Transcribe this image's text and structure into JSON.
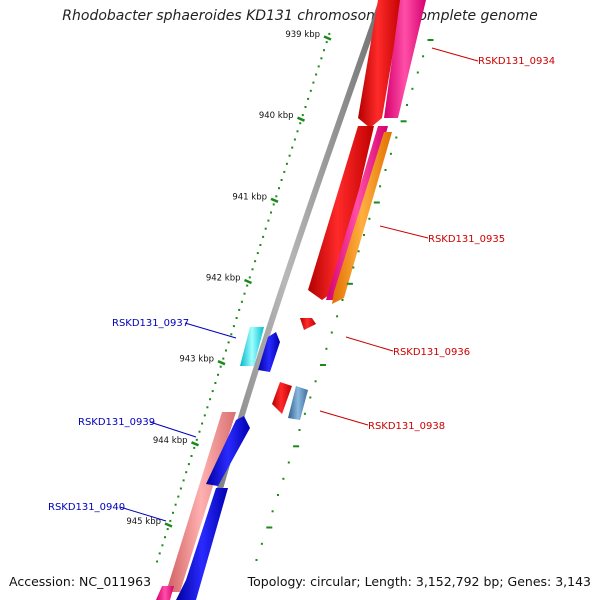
{
  "title": "Rhodobacter sphaeroides KD131 chromosome 1, complete genome",
  "accession_text": "Accession: NC_011963",
  "topology_text": "Topology: circular; Length: 3,152,792 bp; Genes: 3,143",
  "ticks": [
    {
      "label": "939 kbp",
      "pos": 939
    },
    {
      "label": "940 kbp",
      "pos": 940
    },
    {
      "label": "941 kbp",
      "pos": 941
    },
    {
      "label": "942 kbp",
      "pos": 942
    },
    {
      "label": "943 kbp",
      "pos": 943
    },
    {
      "label": "944 kbp",
      "pos": 944
    },
    {
      "label": "945 kbp",
      "pos": 945
    }
  ],
  "labels": {
    "g0934": "RSKD131_0934",
    "g0935": "RSKD131_0935",
    "g0936": "RSKD131_0936",
    "g0937": "RSKD131_0937",
    "g0938": "RSKD131_0938",
    "g0939": "RSKD131_0939",
    "g0940": "RSKD131_0940"
  },
  "colors": {
    "backbone": "#808080",
    "tick": "#1a8a1a",
    "label_red": "#cc0000",
    "label_blue": "#0000bb",
    "red": "#ee0000",
    "magenta": "#ff1493",
    "orange": "#ff8c00",
    "cyan": "#00e5ee",
    "blue": "#0000dd",
    "steelblue": "#4682b4",
    "salmon": "#f08080"
  }
}
